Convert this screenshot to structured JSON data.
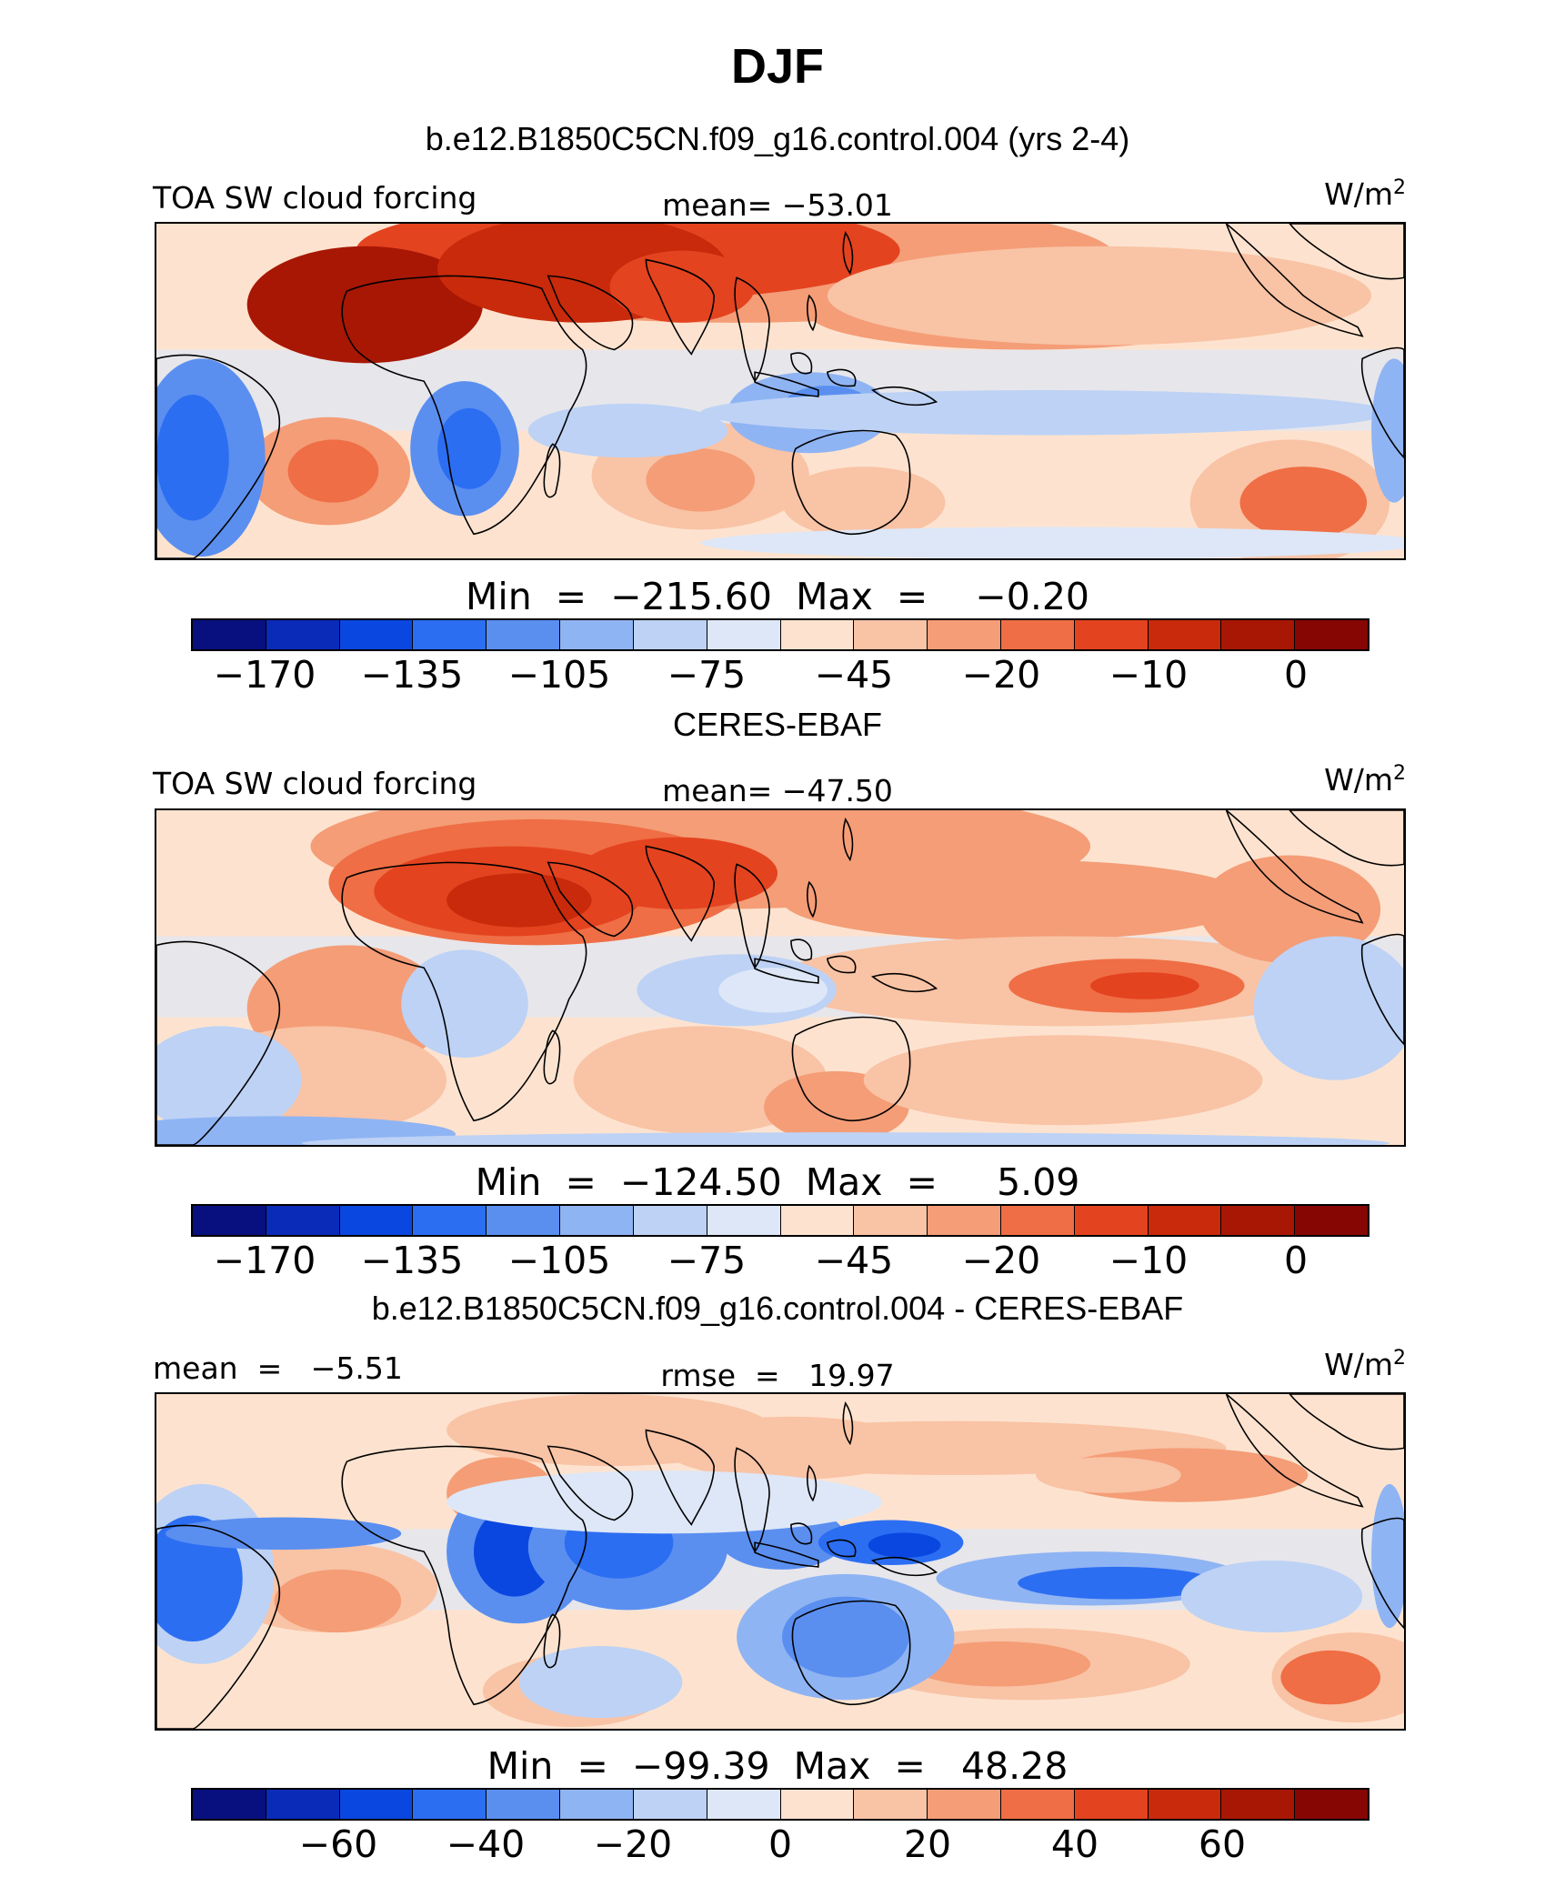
{
  "figure_title": "DJF",
  "panel_variable": "TOA SW cloud forcing",
  "units": "W/m",
  "units_sup": "2",
  "colors_main": [
    "#08107f",
    "#0a2bb8",
    "#0a47e0",
    "#2c6ef2",
    "#5a8ff0",
    "#8fb4f3",
    "#bdd2f5",
    "#dde7f7",
    "#fde3cf",
    "#f9c3a5",
    "#f49d77",
    "#ef6e45",
    "#e4431f",
    "#c92a0b",
    "#a81704",
    "#860603"
  ],
  "colors_diff": [
    "#08107f",
    "#0a2bb8",
    "#0a47e0",
    "#2c6ef2",
    "#5a8ff0",
    "#8fb4f3",
    "#bdd2f5",
    "#dde7f7",
    "#fde3cf",
    "#f9c3a5",
    "#f49d77",
    "#ef6e45",
    "#e4431f",
    "#c92a0b",
    "#a81704",
    "#860603"
  ],
  "panels": [
    {
      "case_title": "b.e12.B1850C5CN.f09_g16.control.004 (yrs 2-4)",
      "left_label": "TOA SW cloud forcing",
      "center_label": "mean= −53.01",
      "min_max": "Min  =  −215.60  Max  =    −0.20",
      "ticks": [
        "−170",
        "−135",
        "−105",
        "−75",
        "−45",
        "−20",
        "−10",
        "0"
      ]
    },
    {
      "case_title": "CERES-EBAF",
      "left_label": "TOA SW cloud forcing",
      "center_label": "mean= −47.50",
      "min_max": "Min  =  −124.50  Max  =     5.09",
      "ticks": [
        "−170",
        "−135",
        "−105",
        "−75",
        "−45",
        "−20",
        "−10",
        "0"
      ]
    },
    {
      "case_title": "b.e12.B1850C5CN.f09_g16.control.004 - CERES-EBAF",
      "left_label": "mean  =   −5.51",
      "center_label": "rmse  =   19.97",
      "min_max": "Min  =  −99.39  Max  =   48.28",
      "ticks": [
        "−60",
        "−40",
        "−20",
        "0",
        "20",
        "40",
        "60"
      ]
    }
  ],
  "chart_data": [
    {
      "type": "heatmap",
      "title": "b.e12.B1850C5CN.f09_g16.control.004 (yrs 2-4)",
      "variable": "TOA SW cloud forcing",
      "units": "W/m2",
      "mean": -53.01,
      "min": -215.6,
      "max": -0.2,
      "contour_levels": [
        -170,
        -155,
        -135,
        -120,
        -105,
        -90,
        -75,
        -60,
        -45,
        -30,
        -20,
        -15,
        -10,
        -5,
        0
      ],
      "colorbar_tick_labels": [
        -170,
        -135,
        -105,
        -75,
        -45,
        -20,
        -10,
        0
      ]
    },
    {
      "type": "heatmap",
      "title": "CERES-EBAF",
      "variable": "TOA SW cloud forcing",
      "units": "W/m2",
      "mean": -47.5,
      "min": -124.5,
      "max": 5.09,
      "contour_levels": [
        -170,
        -155,
        -135,
        -120,
        -105,
        -90,
        -75,
        -60,
        -45,
        -30,
        -20,
        -15,
        -10,
        -5,
        0
      ],
      "colorbar_tick_labels": [
        -170,
        -135,
        -105,
        -75,
        -45,
        -20,
        -10,
        0
      ]
    },
    {
      "type": "heatmap",
      "title": "b.e12.B1850C5CN.f09_g16.control.004 - CERES-EBAF",
      "units": "W/m2",
      "mean": -5.51,
      "rmse": 19.97,
      "min": -99.39,
      "max": 48.28,
      "contour_levels": [
        -70,
        -60,
        -50,
        -40,
        -30,
        -20,
        -10,
        0,
        10,
        20,
        30,
        40,
        50,
        60,
        70
      ],
      "colorbar_tick_labels": [
        -60,
        -40,
        -20,
        0,
        20,
        40,
        60
      ]
    }
  ]
}
